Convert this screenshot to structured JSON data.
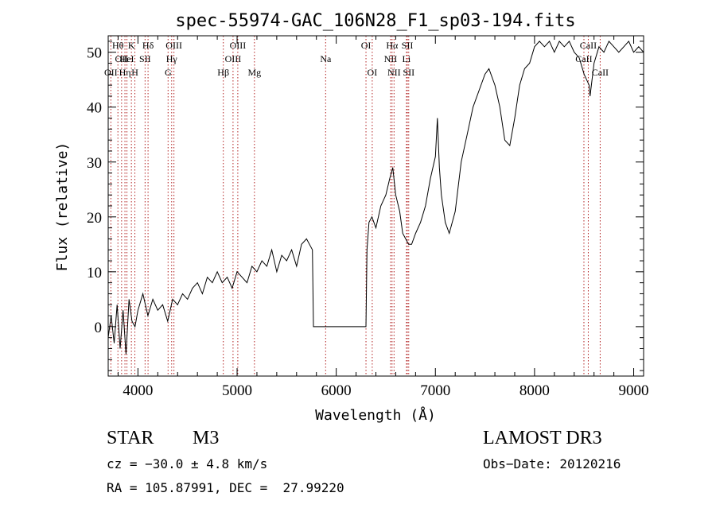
{
  "chart_data": {
    "type": "line",
    "title": "spec-55974-GAC_106N28_F1_sp03-194.fits",
    "xlabel": "Wavelength (Å)",
    "ylabel": "Flux (relative)",
    "xlim": [
      3700,
      9100
    ],
    "ylim": [
      -9,
      53
    ],
    "xticks": [
      4000,
      5000,
      6000,
      7000,
      8000,
      9000
    ],
    "yticks": [
      0,
      10,
      20,
      30,
      40,
      50
    ],
    "line_color": "#000000",
    "marker_color": "#b22222",
    "series": [
      {
        "name": "spectrum",
        "x": [
          3700,
          3730,
          3760,
          3790,
          3820,
          3850,
          3880,
          3910,
          3940,
          3970,
          4000,
          4050,
          4100,
          4150,
          4200,
          4250,
          4300,
          4350,
          4400,
          4450,
          4500,
          4550,
          4600,
          4650,
          4700,
          4750,
          4800,
          4850,
          4900,
          4950,
          5000,
          5050,
          5100,
          5150,
          5200,
          5250,
          5300,
          5350,
          5400,
          5450,
          5500,
          5550,
          5600,
          5650,
          5700,
          5730,
          5760,
          5770,
          6300,
          6310,
          6330,
          6360,
          6400,
          6450,
          6500,
          6540,
          6570,
          6600,
          6640,
          6670,
          6700,
          6730,
          6760,
          6800,
          6850,
          6900,
          6950,
          7000,
          7020,
          7040,
          7060,
          7100,
          7140,
          7200,
          7260,
          7320,
          7380,
          7440,
          7500,
          7540,
          7600,
          7650,
          7700,
          7750,
          7800,
          7850,
          7900,
          7950,
          8000,
          8050,
          8100,
          8150,
          8200,
          8250,
          8300,
          8350,
          8400,
          8450,
          8500,
          8550,
          8560,
          8600,
          8650,
          8700,
          8750,
          8800,
          8850,
          8900,
          8950,
          9000,
          9050,
          9100
        ],
        "values": [
          -2,
          2,
          -3,
          4,
          -4,
          3,
          -5,
          5,
          1,
          0,
          3,
          6,
          2,
          5,
          3,
          4,
          1,
          5,
          4,
          6,
          5,
          7,
          8,
          6,
          9,
          8,
          10,
          8,
          9,
          7,
          10,
          9,
          8,
          11,
          10,
          12,
          11,
          14,
          10,
          13,
          12,
          14,
          11,
          15,
          16,
          15,
          14,
          0,
          0,
          14,
          19,
          20,
          18,
          22,
          24,
          27,
          29,
          24,
          21,
          17,
          16,
          15,
          15,
          17,
          19,
          22,
          27,
          31,
          38,
          29,
          24,
          19,
          17,
          21,
          30,
          35,
          40,
          43,
          46,
          47,
          44,
          40,
          34,
          33,
          38,
          44,
          47,
          48,
          51,
          52,
          51,
          52,
          50,
          52,
          51,
          52,
          50,
          49,
          46,
          44,
          42,
          48,
          51,
          50,
          52,
          51,
          50,
          51,
          52,
          50,
          51,
          50
        ],
        "flat_gap": {
          "x_start": 5770,
          "x_end": 6300,
          "value": 0
        }
      }
    ],
    "spectral_lines": [
      {
        "wavelength": 3727,
        "label": "OII",
        "row": 3
      },
      {
        "wavelength": 3798,
        "label": "Hθ",
        "row": 1
      },
      {
        "wavelength": 3835,
        "label": "OII",
        "row": 2
      },
      {
        "wavelength": 3869,
        "label": "Hη",
        "row": 3
      },
      {
        "wavelength": 3889,
        "label": "HeI",
        "row": 2
      },
      {
        "wavelength": 3934,
        "label": "K",
        "row": 1
      },
      {
        "wavelength": 3969,
        "label": "H",
        "row": 3
      },
      {
        "wavelength": 4072,
        "label": "SII",
        "row": 2
      },
      {
        "wavelength": 4102,
        "label": "Hδ",
        "row": 1
      },
      {
        "wavelength": 4304,
        "label": "G",
        "row": 3
      },
      {
        "wavelength": 4340,
        "label": "Hγ",
        "row": 2
      },
      {
        "wavelength": 4363,
        "label": "OIII",
        "row": 1
      },
      {
        "wavelength": 4861,
        "label": "Hβ",
        "row": 3
      },
      {
        "wavelength": 4959,
        "label": "OIII",
        "row": 2
      },
      {
        "wavelength": 5007,
        "label": "OIII",
        "row": 1
      },
      {
        "wavelength": 5175,
        "label": "Mg",
        "row": 3
      },
      {
        "wavelength": 5893,
        "label": "Na",
        "row": 2
      },
      {
        "wavelength": 6300,
        "label": "OI",
        "row": 1
      },
      {
        "wavelength": 6363,
        "label": "OI",
        "row": 3
      },
      {
        "wavelength": 6548,
        "label": "NII",
        "row": 2
      },
      {
        "wavelength": 6563,
        "label": "Hα",
        "row": 1
      },
      {
        "wavelength": 6583,
        "label": "NII",
        "row": 3
      },
      {
        "wavelength": 6708,
        "label": "Li",
        "row": 2
      },
      {
        "wavelength": 6717,
        "label": "SII",
        "row": 1
      },
      {
        "wavelength": 6731,
        "label": "SII",
        "row": 3
      },
      {
        "wavelength": 8498,
        "label": "CaII",
        "row": 2
      },
      {
        "wavelength": 8542,
        "label": "CaII",
        "row": 1
      },
      {
        "wavelength": 8662,
        "label": "CaII",
        "row": 3
      }
    ]
  },
  "info": {
    "object_class": "STAR",
    "subclass": "M3",
    "survey": "LAMOST DR3",
    "redshift_text": "cz = −30.0 ± 4.8 km/s",
    "obs_date_text": "Obs−Date: 20120216",
    "coords_text": "RA = 105.87991, DEC =  27.99220"
  }
}
